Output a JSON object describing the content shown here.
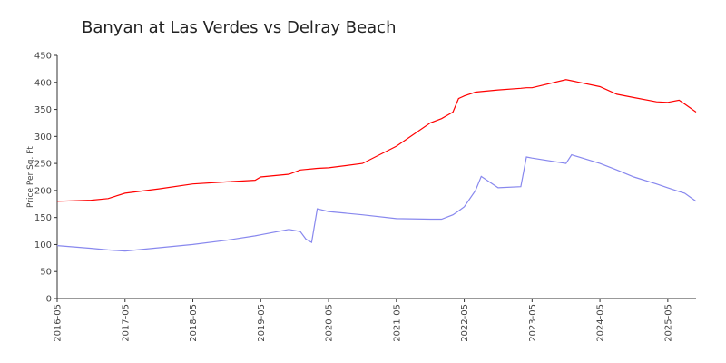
{
  "chart_data": {
    "type": "line",
    "title": "Banyan at Las Verdes vs Delray Beach",
    "y_label": "Price Per Sq. Ft",
    "x": [
      "2016-05",
      "2016-11",
      "2017-02",
      "2017-05",
      "2017-11",
      "2018-05",
      "2018-11",
      "2019-04",
      "2019-05",
      "2019-10",
      "2019-12",
      "2020-01",
      "2020-02",
      "2020-03",
      "2020-05",
      "2020-11",
      "2021-05",
      "2021-11",
      "2022-01",
      "2022-03",
      "2022-04",
      "2022-05",
      "2022-07",
      "2022-08",
      "2022-11",
      "2023-03",
      "2023-04",
      "2023-05",
      "2023-11",
      "2023-12",
      "2024-05",
      "2024-08",
      "2024-11",
      "2025-03",
      "2025-05",
      "2025-07",
      "2025-08",
      "2025-10"
    ],
    "series": [
      {
        "color": "#ff0000",
        "values": [
          180,
          182,
          185,
          195,
          203,
          212,
          216,
          219,
          225,
          230,
          238,
          239,
          240,
          241,
          242,
          250,
          282,
          325,
          333,
          345,
          370,
          375,
          382,
          383,
          386,
          389,
          390,
          390,
          405,
          403,
          392,
          378,
          372,
          364,
          363,
          367,
          360,
          345
        ]
      },
      {
        "color": "#8888ee",
        "values": [
          98,
          93,
          90,
          88,
          94,
          100,
          108,
          116,
          118,
          128,
          124,
          110,
          104,
          166,
          161,
          155,
          148,
          147,
          147,
          155,
          162,
          170,
          200,
          226,
          205,
          207,
          262,
          260,
          250,
          266,
          250,
          238,
          225,
          212,
          205,
          198,
          195,
          180
        ]
      }
    ],
    "xlim": [
      "2016-05",
      "2025-10"
    ],
    "xticks": [
      "2016-05",
      "2017-05",
      "2018-05",
      "2019-05",
      "2020-05",
      "2021-05",
      "2022-05",
      "2023-05",
      "2024-05",
      "2025-05"
    ],
    "ylim": [
      0,
      450
    ],
    "yticks": [
      0,
      50,
      100,
      150,
      200,
      250,
      300,
      350,
      400,
      450
    ]
  }
}
